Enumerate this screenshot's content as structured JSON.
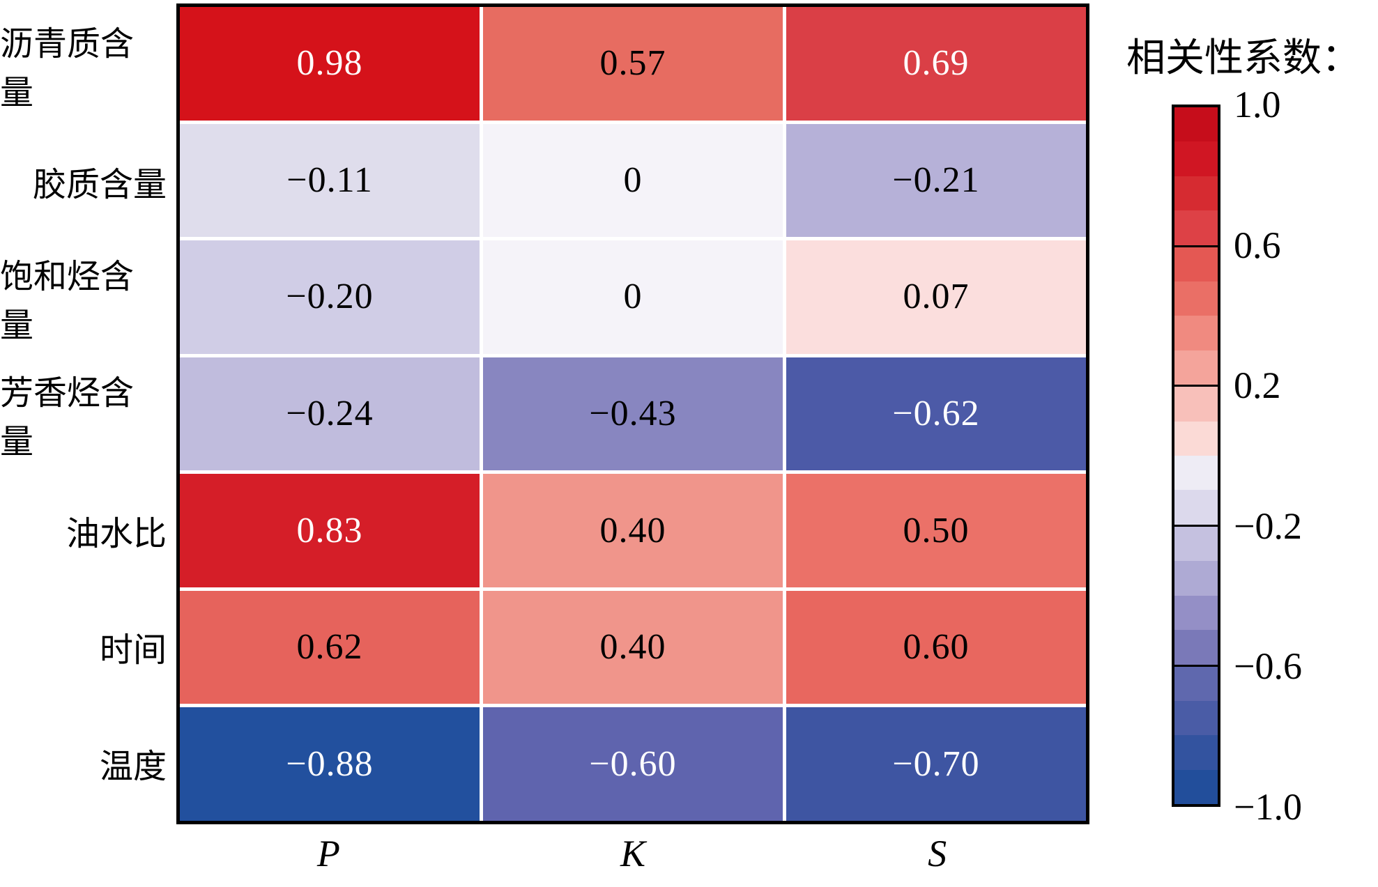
{
  "legend": {
    "title": "相关性系数：",
    "band_colors": [
      "#c60d1b",
      "#d01623",
      "#d62b31",
      "#dd4146",
      "#e45853",
      "#ea6f66",
      "#f08a80",
      "#f4a49b",
      "#f8c0ba",
      "#fbdad6",
      "#eeecf5",
      "#dcd9ec",
      "#c5c1e0",
      "#aeaad4",
      "#948fc6",
      "#7a79b8",
      "#5f68ae",
      "#4a5ca6",
      "#33539f",
      "#224e9b"
    ],
    "ticks": [
      {
        "label": "1.0",
        "value": 1.0
      },
      {
        "label": "0.6",
        "value": 0.6
      },
      {
        "label": "0.2",
        "value": 0.2
      },
      {
        "label": "−0.2",
        "value": -0.2
      },
      {
        "label": "−0.6",
        "value": -0.6
      },
      {
        "label": "−1.0",
        "value": -1.0
      }
    ]
  },
  "chart_data": {
    "type": "heatmap",
    "title": "",
    "rows": [
      "沥青质含量",
      "胶质含量",
      "饱和烃含量",
      "芳香烃含量",
      "油水比",
      "时间",
      "温度"
    ],
    "columns": [
      "P",
      "K",
      "S"
    ],
    "values": [
      [
        0.98,
        0.57,
        0.69
      ],
      [
        -0.11,
        0,
        -0.21
      ],
      [
        -0.2,
        0,
        0.07
      ],
      [
        -0.24,
        -0.43,
        -0.62
      ],
      [
        0.83,
        0.4,
        0.5
      ],
      [
        0.62,
        0.4,
        0.6
      ],
      [
        -0.88,
        -0.6,
        -0.7
      ]
    ],
    "cell_labels": [
      [
        "0.98",
        "0.57",
        "0.69"
      ],
      [
        "−0.11",
        "0",
        "−0.21"
      ],
      [
        "−0.20",
        "0",
        "0.07"
      ],
      [
        "−0.24",
        "−0.43",
        "−0.62"
      ],
      [
        "0.83",
        "0.40",
        "0.50"
      ],
      [
        "0.62",
        "0.40",
        "0.60"
      ],
      [
        "−0.88",
        "−0.60",
        "−0.70"
      ]
    ],
    "cell_colors": [
      [
        "#d5121a",
        "#e76c61",
        "#da3f46"
      ],
      [
        "#dfddec",
        "#f5f3f9",
        "#b6b1d8"
      ],
      [
        "#d0cde6",
        "#f5f3f9",
        "#fbdedd"
      ],
      [
        "#c0bcdd",
        "#8886c0",
        "#4c5aa7"
      ],
      [
        "#d51e28",
        "#f0958b",
        "#eb7168"
      ],
      [
        "#e6635c",
        "#f0958b",
        "#e8675f"
      ],
      [
        "#22509e",
        "#5f64ae",
        "#3e55a2"
      ]
    ],
    "cell_text_colors": [
      [
        "#ffffff",
        "#000000",
        "#ffffff"
      ],
      [
        "#000000",
        "#000000",
        "#000000"
      ],
      [
        "#000000",
        "#000000",
        "#000000"
      ],
      [
        "#000000",
        "#000000",
        "#ffffff"
      ],
      [
        "#ffffff",
        "#000000",
        "#000000"
      ],
      [
        "#000000",
        "#000000",
        "#000000"
      ],
      [
        "#ffffff",
        "#ffffff",
        "#ffffff"
      ]
    ],
    "colorbar": {
      "title": "相关性系数：",
      "range": [
        -1,
        1
      ],
      "tick_values": [
        1.0,
        0.6,
        0.2,
        -0.2,
        -0.6,
        -1.0
      ],
      "position": "right",
      "separator_values": [
        0.6,
        0.2,
        -0.2,
        -0.6
      ]
    }
  }
}
